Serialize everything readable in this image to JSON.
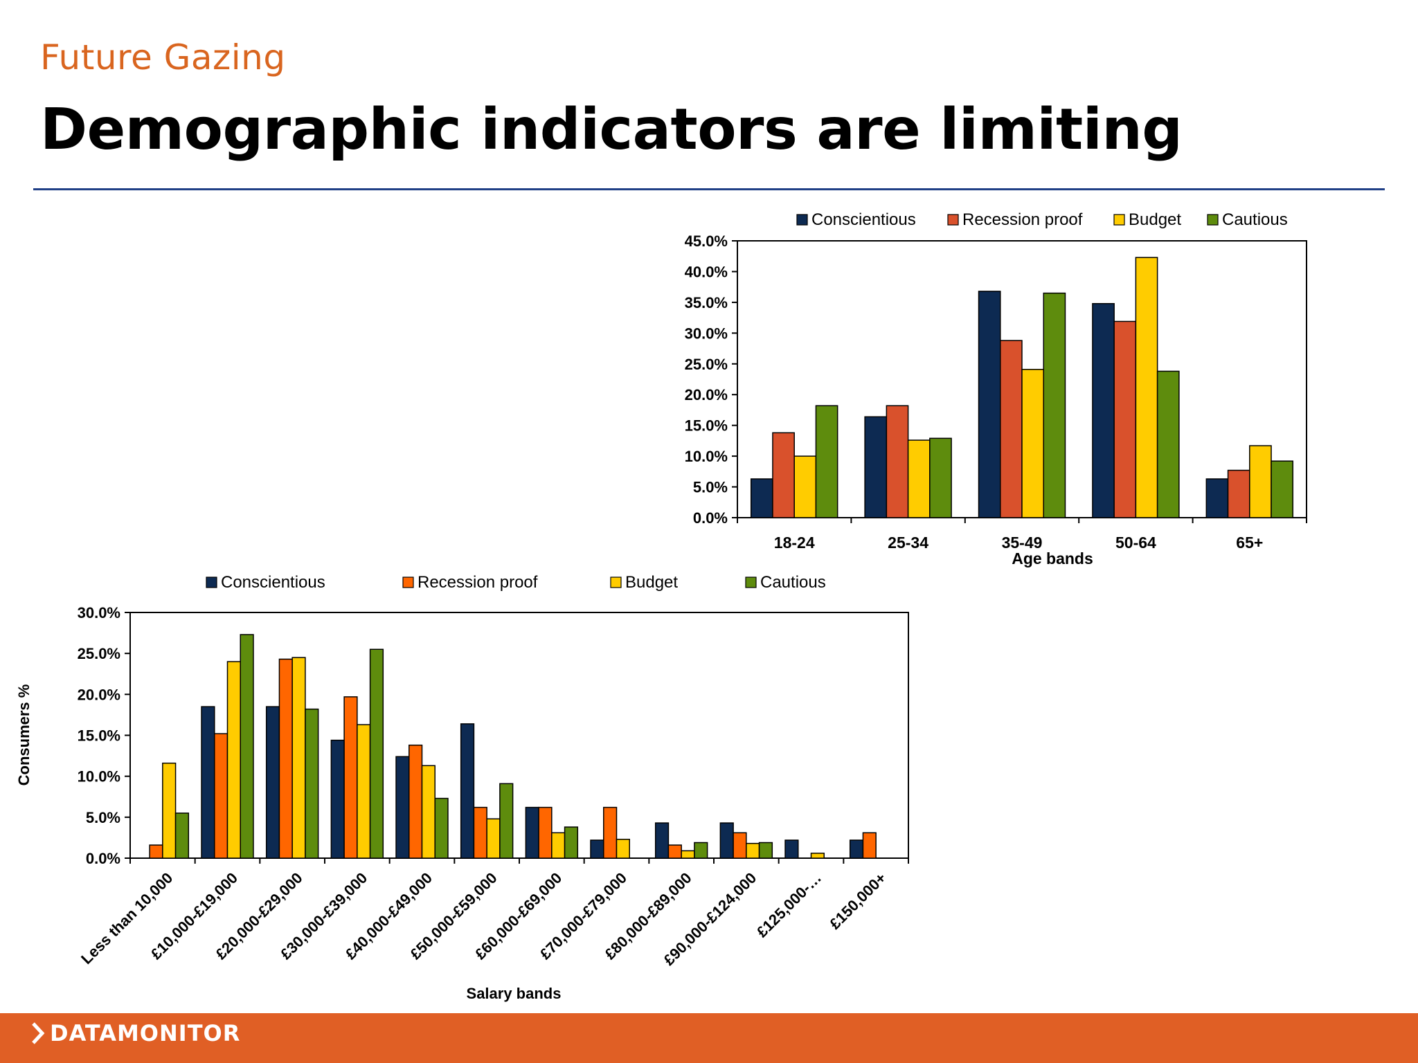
{
  "header": {
    "subtitle": "Future Gazing",
    "title": "Demographic indicators are limiting"
  },
  "footer": {
    "brand": "DATAMONITOR"
  },
  "colors": {
    "Conscientious": "#0d2a52",
    "Recession proof": "#d9512c",
    "Budget": "#ffcc00",
    "Cautious": "#5e8c0d",
    "Recession proof (salary chart)": "#ff6600",
    "accent": "#e05f25",
    "rule": "#1f3f86",
    "subtitle": "#d9651f"
  },
  "chart_data": [
    {
      "type": "bar",
      "categories": [
        "18-24",
        "25-34",
        "35-49",
        "50-64",
        "65+"
      ],
      "series": [
        {
          "name": "Conscientious",
          "values": [
            6.3,
            16.4,
            36.8,
            34.8,
            6.3
          ]
        },
        {
          "name": "Recession proof",
          "values": [
            13.8,
            18.2,
            28.8,
            31.9,
            7.7
          ]
        },
        {
          "name": "Budget",
          "values": [
            10.0,
            12.6,
            24.1,
            42.3,
            11.7
          ]
        },
        {
          "name": "Cautious",
          "values": [
            18.2,
            12.9,
            36.5,
            23.8,
            9.2
          ]
        }
      ],
      "xlabel": "Age bands",
      "ylabel": "",
      "ylim": [
        0,
        45
      ],
      "yticks": [
        "0.0%",
        "5.0%",
        "10.0%",
        "15.0%",
        "20.0%",
        "25.0%",
        "30.0%",
        "35.0%",
        "40.0%",
        "45.0%"
      ],
      "legend": "top"
    },
    {
      "type": "bar",
      "categories": [
        "Less than 10,000",
        "£10,000-£19,000",
        "£20,000-£29,000",
        "£30,000-£39,000",
        "£40,000-£49,000",
        "£50,000-£59,000",
        "£60,000-£69,000",
        "£70,000-£79,000",
        "£80,000-£89,000",
        "£90,000-£124,000",
        "£125,000-…",
        "£150,000+"
      ],
      "series": [
        {
          "name": "Conscientious",
          "values": [
            0.0,
            18.5,
            18.5,
            14.4,
            12.4,
            16.4,
            6.2,
            2.2,
            4.3,
            4.3,
            2.2,
            2.2
          ]
        },
        {
          "name": "Recession proof",
          "values": [
            1.6,
            15.2,
            24.3,
            19.7,
            13.8,
            6.2,
            6.2,
            6.2,
            1.6,
            3.1,
            0.0,
            3.1
          ]
        },
        {
          "name": "Budget",
          "values": [
            11.6,
            24.0,
            24.5,
            16.3,
            11.3,
            4.8,
            3.1,
            2.3,
            0.9,
            1.8,
            0.6,
            0.0
          ]
        },
        {
          "name": "Cautious",
          "values": [
            5.5,
            27.3,
            18.2,
            25.5,
            7.3,
            9.1,
            3.8,
            0.0,
            1.9,
            1.9,
            0.0,
            0.0
          ]
        }
      ],
      "xlabel": "Salary bands",
      "ylabel": "Consumers %",
      "ylim": [
        0,
        30
      ],
      "yticks": [
        "0.0%",
        "5.0%",
        "10.0%",
        "15.0%",
        "20.0%",
        "25.0%",
        "30.0%"
      ],
      "legend": "top"
    }
  ]
}
